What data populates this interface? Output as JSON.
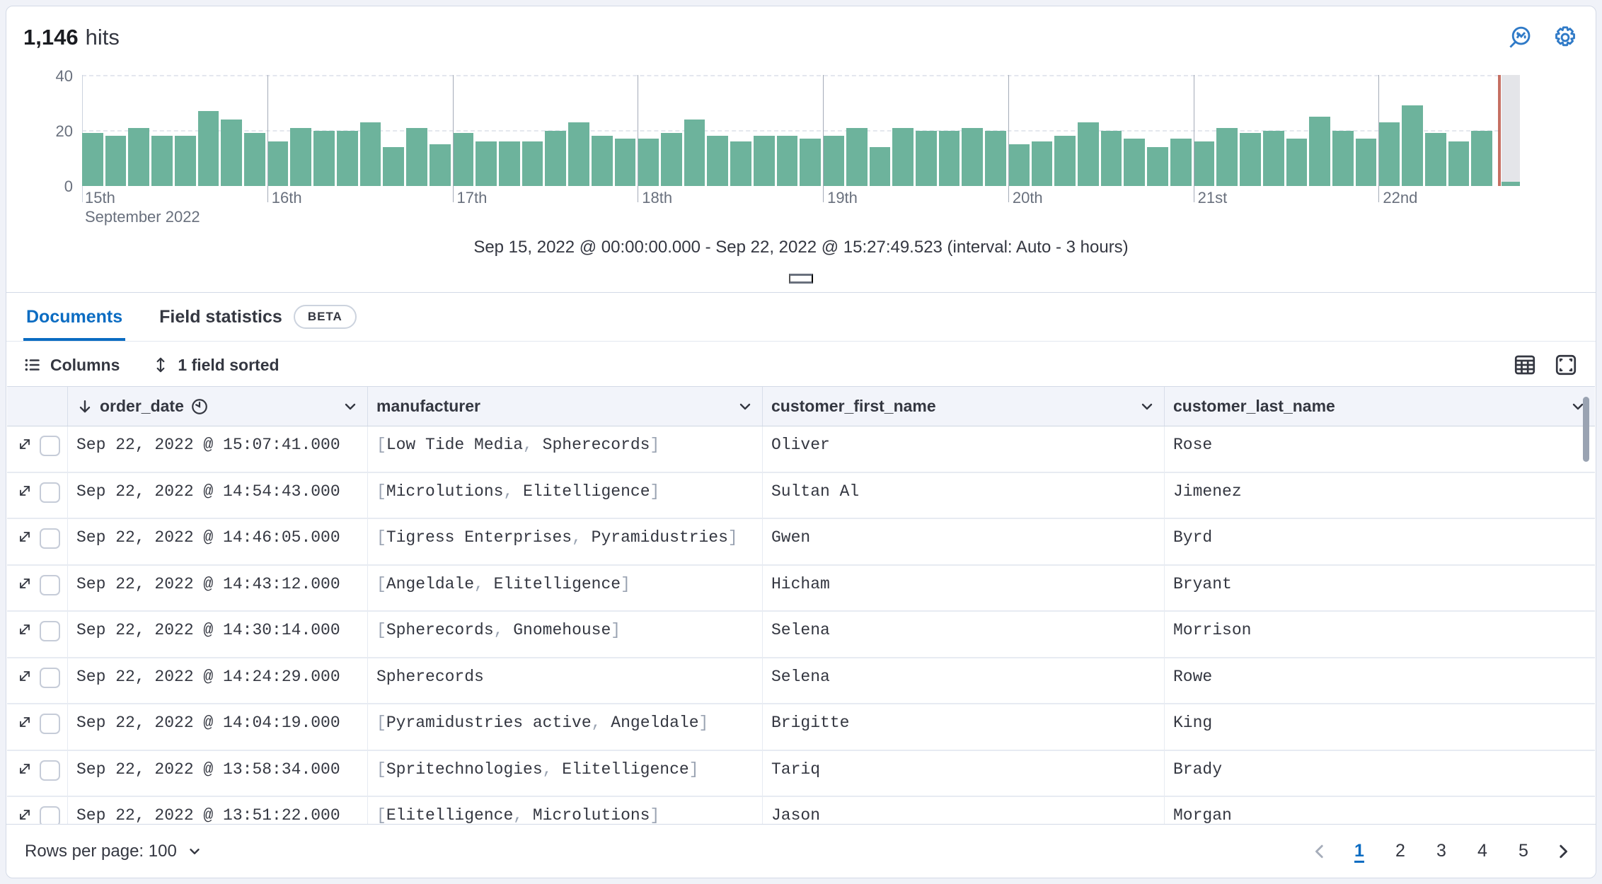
{
  "colors": {
    "accent_blue": "#0b6cc2",
    "bar_green": "#6db39c",
    "current_time_red": "#b84c3c",
    "partial_bucket_gray": "#e4e5e9",
    "text_dark": "#343741",
    "text_muted": "#69707d",
    "border": "#d3dae6"
  },
  "header": {
    "hits_count": "1,146",
    "hits_label": "hits",
    "icons": [
      "inspect-icon",
      "gear-icon"
    ]
  },
  "chart_data": {
    "type": "bar",
    "title": "",
    "ylabel": "",
    "xlabel": "",
    "y_tick_labels": [
      "40",
      "20",
      "0"
    ],
    "ylim": [
      0,
      40
    ],
    "x_tick_labels": [
      "15th",
      "16th",
      "17th",
      "18th",
      "19th",
      "20th",
      "21st",
      "22nd"
    ],
    "x_axis_secondary_label": "September 2022",
    "bars_per_day": 8,
    "grid": "dashed horizontal at 20 and 40",
    "legend_position": "none",
    "values": [
      19,
      18,
      21,
      18,
      18,
      27,
      24,
      19,
      16,
      21,
      20,
      20,
      23,
      14,
      21,
      15,
      19,
      16,
      16,
      16,
      20,
      23,
      18,
      17,
      17,
      19,
      24,
      18,
      16,
      18,
      18,
      17,
      18,
      21,
      14,
      21,
      20,
      20,
      21,
      20,
      15,
      16,
      18,
      23,
      20,
      17,
      14,
      17,
      16,
      21,
      19,
      20,
      17,
      25,
      20,
      17,
      23,
      29,
      19,
      16,
      20
    ],
    "partial_bucket_value": 1.5,
    "caption": "Sep 15, 2022 @ 00:00:00.000 - Sep 22, 2022 @ 15:27:49.523 (interval: Auto - 3 hours)"
  },
  "tabs": {
    "documents": "Documents",
    "field_statistics": "Field statistics",
    "beta_badge": "BETA"
  },
  "toolbar": {
    "columns": "Columns",
    "sorted": "1 field sorted"
  },
  "table": {
    "columns": [
      {
        "label": "order_date",
        "sorted_desc": true,
        "time_icon": true
      },
      {
        "label": "manufacturer"
      },
      {
        "label": "customer_first_name"
      },
      {
        "label": "customer_last_name"
      }
    ],
    "rows": [
      {
        "order_date": "Sep 22, 2022 @ 15:07:41.000",
        "manufacturer": [
          "Low Tide Media",
          "Spherecords"
        ],
        "customer_first_name": "Oliver",
        "customer_last_name": "Rose"
      },
      {
        "order_date": "Sep 22, 2022 @ 14:54:43.000",
        "manufacturer": [
          "Microlutions",
          "Elitelligence"
        ],
        "customer_first_name": "Sultan Al",
        "customer_last_name": "Jimenez"
      },
      {
        "order_date": "Sep 22, 2022 @ 14:46:05.000",
        "manufacturer": [
          "Tigress Enterprises",
          "Pyramidustries"
        ],
        "customer_first_name": "Gwen",
        "customer_last_name": "Byrd"
      },
      {
        "order_date": "Sep 22, 2022 @ 14:43:12.000",
        "manufacturer": [
          "Angeldale",
          "Elitelligence"
        ],
        "customer_first_name": "Hicham",
        "customer_last_name": "Bryant"
      },
      {
        "order_date": "Sep 22, 2022 @ 14:30:14.000",
        "manufacturer": [
          "Spherecords",
          "Gnomehouse"
        ],
        "customer_first_name": "Selena",
        "customer_last_name": "Morrison"
      },
      {
        "order_date": "Sep 22, 2022 @ 14:24:29.000",
        "manufacturer": "Spherecords",
        "customer_first_name": "Selena",
        "customer_last_name": "Rowe"
      },
      {
        "order_date": "Sep 22, 2022 @ 14:04:19.000",
        "manufacturer": [
          "Pyramidustries active",
          "Angeldale"
        ],
        "customer_first_name": "Brigitte",
        "customer_last_name": "King"
      },
      {
        "order_date": "Sep 22, 2022 @ 13:58:34.000",
        "manufacturer": [
          "Spritechnologies",
          "Elitelligence"
        ],
        "customer_first_name": "Tariq",
        "customer_last_name": "Brady"
      },
      {
        "order_date": "Sep 22, 2022 @ 13:51:22.000",
        "manufacturer": [
          "Elitelligence",
          "Microlutions"
        ],
        "customer_first_name": "Jason",
        "customer_last_name": "Morgan"
      }
    ]
  },
  "footer": {
    "rows_per_page": "Rows per page: 100",
    "pages": [
      "1",
      "2",
      "3",
      "4",
      "5"
    ],
    "active_page": "1"
  }
}
